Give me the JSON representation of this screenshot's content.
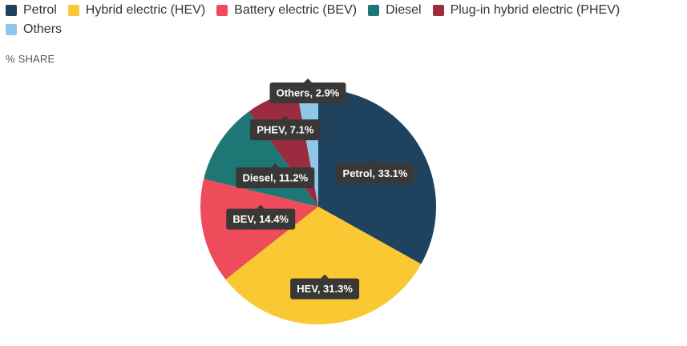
{
  "subtitle": "% SHARE",
  "chart_data": {
    "type": "pie",
    "title": "",
    "slices": [
      {
        "name": "Petrol",
        "short": "Petrol",
        "value": 33.1,
        "color": "#1f435f"
      },
      {
        "name": "Hybrid electric (HEV)",
        "short": "HEV",
        "value": 31.3,
        "color": "#f9c832"
      },
      {
        "name": "Battery electric (BEV)",
        "short": "BEV",
        "value": 14.4,
        "color": "#ee4b5b"
      },
      {
        "name": "Diesel",
        "short": "Diesel",
        "value": 11.2,
        "color": "#1e7774"
      },
      {
        "name": "Plug-in hybrid electric (PHEV)",
        "short": "PHEV",
        "value": 7.1,
        "color": "#9b2c3f"
      },
      {
        "name": "Others",
        "short": "Others",
        "value": 2.9,
        "color": "#8fc6ea"
      }
    ],
    "legend_position": "top-left",
    "unit": "%"
  }
}
